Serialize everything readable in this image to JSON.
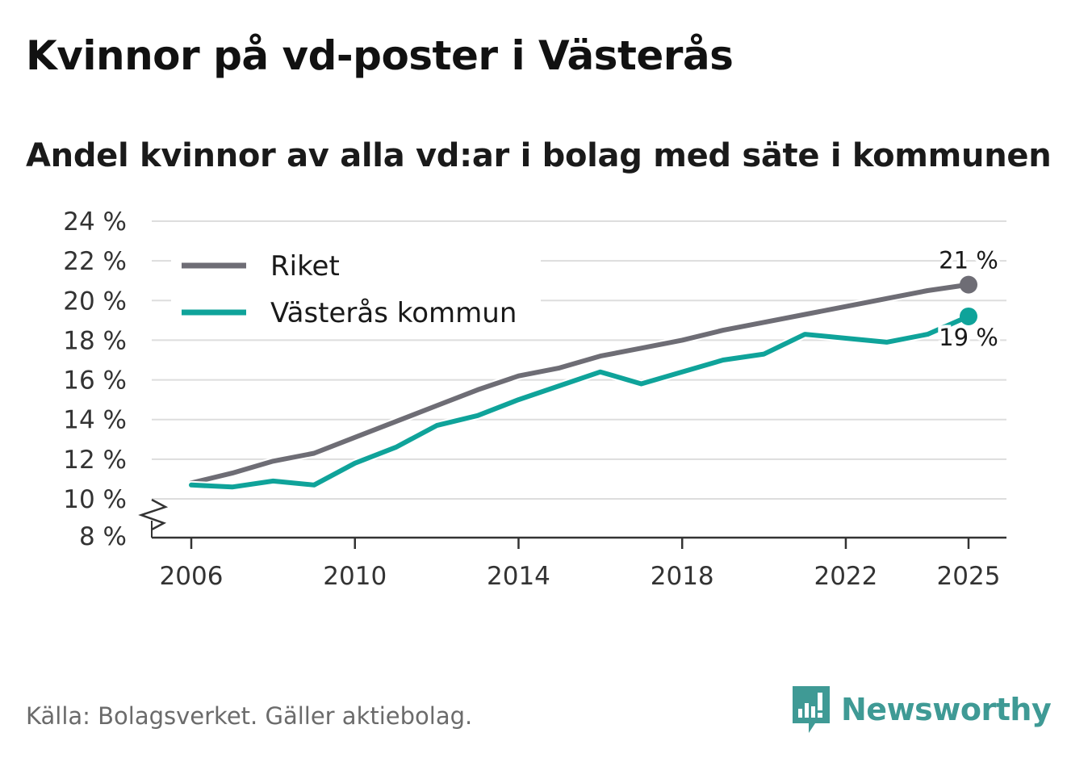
{
  "title": "Kvinnor på vd-poster i Västerås",
  "subtitle": "Andel kvinnor av alla vd:ar i bolag med säte i kommunen",
  "source": "Källa: Bolagsverket. Gäller aktiebolag.",
  "brand": {
    "name": "Newsworthy",
    "icon": "newsworthy-logo-icon",
    "color": "#3f9a95"
  },
  "colors": {
    "riket": "#6e6d75",
    "vasteras": "#0fa39a",
    "grid": "#dddddd",
    "axis": "#333333"
  },
  "chart_data": {
    "type": "line",
    "title": "Kvinnor på vd-poster i Västerås",
    "xlabel": "",
    "ylabel": "",
    "ylim": [
      8,
      24
    ],
    "x_ticks": [
      2006,
      2010,
      2014,
      2018,
      2022,
      2025
    ],
    "y_ticks": [
      8,
      10,
      12,
      14,
      16,
      18,
      20,
      22,
      24
    ],
    "y_tick_labels": [
      "8 %",
      "10 %",
      "12 %",
      "14 %",
      "16 %",
      "18 %",
      "20 %",
      "22 %",
      "24 %"
    ],
    "axis_break": true,
    "grid": true,
    "legend_position": "top-left",
    "x": [
      2006,
      2007,
      2008,
      2009,
      2010,
      2011,
      2012,
      2013,
      2014,
      2015,
      2016,
      2017,
      2018,
      2019,
      2020,
      2021,
      2022,
      2023,
      2024,
      2025
    ],
    "series": [
      {
        "name": "Riket",
        "color": "#6e6d75",
        "end_label": "21 %",
        "values": [
          10.8,
          11.3,
          11.9,
          12.3,
          13.1,
          13.9,
          14.7,
          15.5,
          16.2,
          16.6,
          17.2,
          17.6,
          18.0,
          18.5,
          18.9,
          19.3,
          19.7,
          20.1,
          20.5,
          20.8
        ]
      },
      {
        "name": "Västerås kommun",
        "color": "#0fa39a",
        "end_label": "19 %",
        "values": [
          10.7,
          10.6,
          10.9,
          10.7,
          11.8,
          12.6,
          13.7,
          14.2,
          15.0,
          15.7,
          16.4,
          15.8,
          16.4,
          17.0,
          17.3,
          18.3,
          18.1,
          17.9,
          18.3,
          19.2
        ]
      }
    ]
  }
}
